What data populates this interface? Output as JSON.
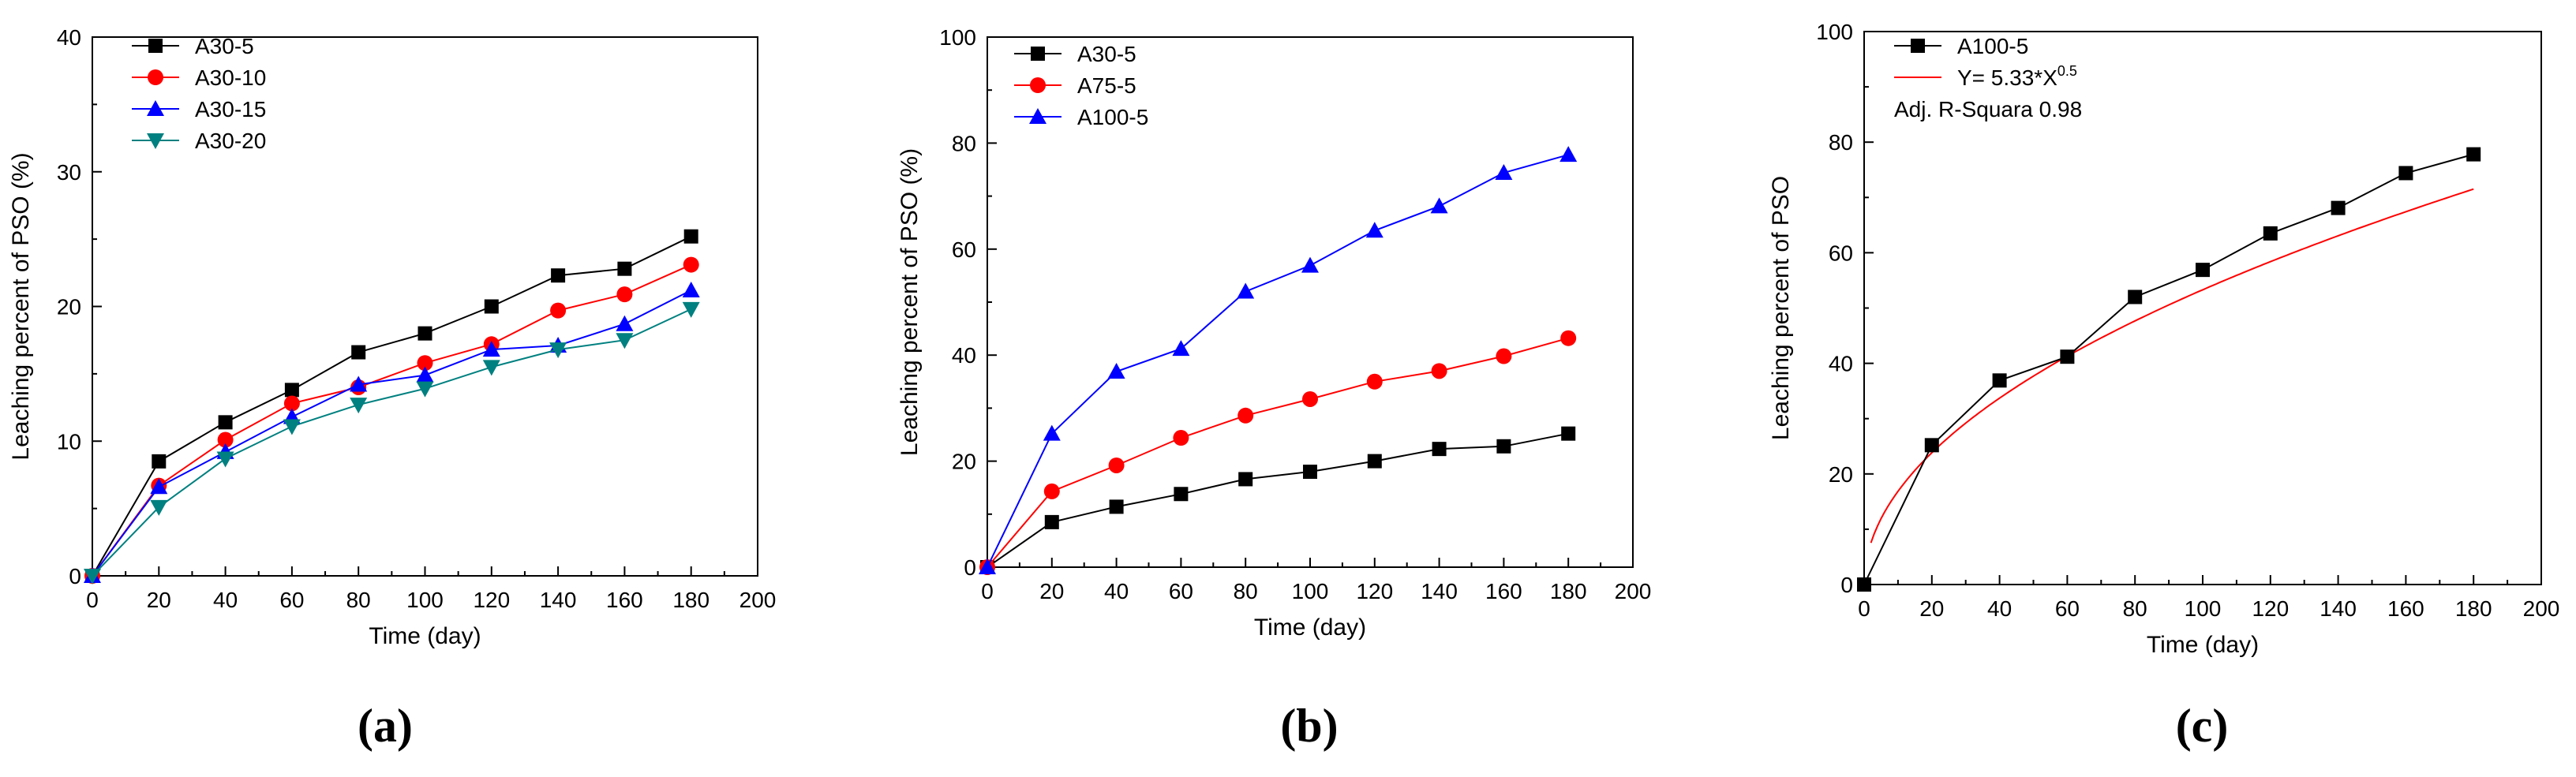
{
  "chart_data": [
    {
      "panel": "(a)",
      "type": "line",
      "xlabel": "Time (day)",
      "ylabel": "Leaching percent of PSO (%)",
      "xlim": [
        0,
        200
      ],
      "ylim": [
        0,
        40
      ],
      "xticks": [
        0,
        20,
        40,
        60,
        80,
        100,
        120,
        140,
        160,
        180,
        200
      ],
      "yticks": [
        0,
        10,
        20,
        30,
        40
      ],
      "legend_position": "top-left",
      "series": [
        {
          "name": "A30-5",
          "color": "#000000",
          "marker": "square",
          "x": [
            0,
            20,
            40,
            60,
            80,
            100,
            120,
            140,
            160,
            180
          ],
          "y": [
            0,
            8.5,
            11.4,
            13.8,
            16.6,
            18.0,
            20.0,
            22.3,
            22.8,
            25.2
          ]
        },
        {
          "name": "A30-10",
          "color": "#ff0000",
          "marker": "circle",
          "x": [
            0,
            20,
            40,
            60,
            80,
            100,
            120,
            140,
            160,
            180
          ],
          "y": [
            0,
            6.7,
            10.1,
            12.8,
            14.0,
            15.8,
            17.2,
            19.7,
            20.9,
            23.1
          ]
        },
        {
          "name": "A30-15",
          "color": "#0000ff",
          "marker": "triangle-up",
          "x": [
            0,
            20,
            40,
            60,
            80,
            100,
            120,
            140,
            160,
            180
          ],
          "y": [
            0,
            6.6,
            9.2,
            11.8,
            14.2,
            14.9,
            16.8,
            17.1,
            18.7,
            21.2
          ]
        },
        {
          "name": "A30-20",
          "color": "#008080",
          "marker": "triangle-down",
          "x": [
            0,
            20,
            40,
            60,
            80,
            100,
            120,
            140,
            160,
            180
          ],
          "y": [
            0,
            5.1,
            8.7,
            11.1,
            12.7,
            13.9,
            15.5,
            16.8,
            17.5,
            19.8
          ]
        }
      ]
    },
    {
      "panel": "(b)",
      "type": "line",
      "xlabel": "Time (day)",
      "ylabel": "Leaching percent of PSO (%)",
      "xlim": [
        0,
        200
      ],
      "ylim": [
        0,
        100
      ],
      "xticks": [
        0,
        20,
        40,
        60,
        80,
        100,
        120,
        140,
        160,
        180,
        200
      ],
      "yticks": [
        0,
        20,
        40,
        60,
        80,
        100
      ],
      "legend_position": "top-left",
      "series": [
        {
          "name": "A30-5",
          "color": "#000000",
          "marker": "square",
          "x": [
            0,
            20,
            40,
            60,
            80,
            100,
            120,
            140,
            160,
            180
          ],
          "y": [
            0,
            8.5,
            11.4,
            13.8,
            16.6,
            18.0,
            20.0,
            22.3,
            22.8,
            25.2
          ]
        },
        {
          "name": "A75-5",
          "color": "#ff0000",
          "marker": "circle",
          "x": [
            0,
            20,
            40,
            60,
            80,
            100,
            120,
            140,
            160,
            180
          ],
          "y": [
            0,
            14.3,
            19.2,
            24.4,
            28.6,
            31.7,
            35.0,
            37.0,
            39.8,
            43.2
          ]
        },
        {
          "name": "A100-5",
          "color": "#0000ff",
          "marker": "triangle-up",
          "x": [
            0,
            20,
            40,
            60,
            80,
            100,
            120,
            140,
            160,
            180
          ],
          "y": [
            0,
            25.2,
            36.9,
            41.2,
            52.0,
            56.9,
            63.5,
            68.1,
            74.4,
            77.8
          ]
        }
      ]
    },
    {
      "panel": "(c)",
      "type": "line",
      "xlabel": "Time (day)",
      "ylabel": "Leaching percent of PSO",
      "xlim": [
        0,
        200
      ],
      "ylim": [
        0,
        100
      ],
      "xticks": [
        0,
        20,
        40,
        60,
        80,
        100,
        120,
        140,
        160,
        180,
        200
      ],
      "yticks": [
        0,
        20,
        40,
        60,
        80,
        100
      ],
      "legend_position": "top-left",
      "fit": {
        "name_prefix": "Y= 5.33*X",
        "name_exponent": "0.5",
        "color": "#ff0000",
        "coefficient": 5.33,
        "exponent": 0.5,
        "x_range": [
          2,
          180
        ]
      },
      "annotation": "Adj. R-Squara 0.98",
      "series": [
        {
          "name": "A100-5",
          "color": "#000000",
          "marker": "square",
          "x": [
            0,
            20,
            40,
            60,
            80,
            100,
            120,
            140,
            160,
            180
          ],
          "y": [
            0,
            25.2,
            36.9,
            41.2,
            52.0,
            56.9,
            63.5,
            68.1,
            74.4,
            77.8
          ]
        }
      ]
    }
  ]
}
